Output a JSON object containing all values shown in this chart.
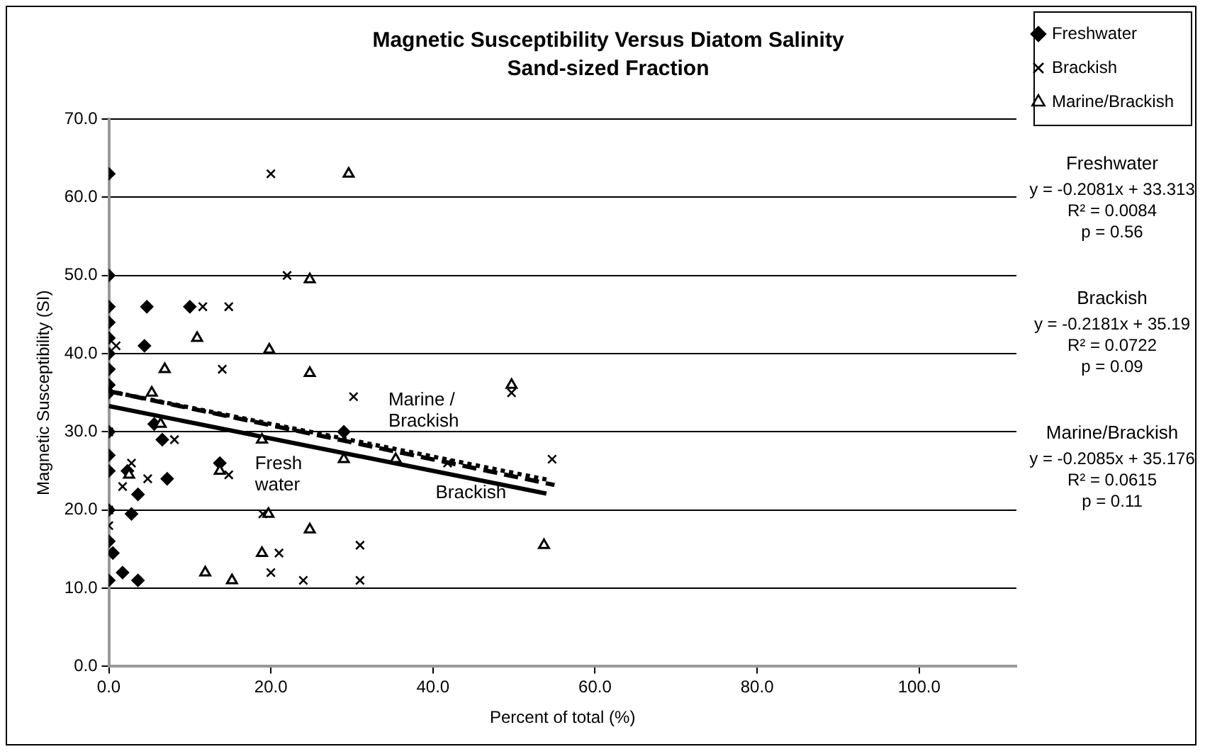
{
  "chart_data": {
    "type": "scatter",
    "title": "Magnetic Susceptibility Versus Diatom Salinity",
    "subtitle": "Sand-sized Fraction",
    "xlabel": "Percent of total (%)",
    "ylabel": "Magnetic Susceptibility (SI)",
    "xlim": [
      0,
      112
    ],
    "ylim": [
      0,
      70
    ],
    "xticks": [
      {
        "value": 0,
        "label": "0.0"
      },
      {
        "value": 20,
        "label": "20.0"
      },
      {
        "value": 40,
        "label": "40.0"
      },
      {
        "value": 60,
        "label": "60.0"
      },
      {
        "value": 80,
        "label": "80.0"
      },
      {
        "value": 100,
        "label": "100.0"
      }
    ],
    "yticks": [
      {
        "value": 0,
        "label": "0.0"
      },
      {
        "value": 10,
        "label": "10.0"
      },
      {
        "value": 20,
        "label": "20.0"
      },
      {
        "value": 30,
        "label": "30.0"
      },
      {
        "value": 40,
        "label": "40.0"
      },
      {
        "value": 50,
        "label": "50.0"
      },
      {
        "value": 60,
        "label": "60.0"
      },
      {
        "value": 70,
        "label": "70.0"
      }
    ],
    "grid": "y",
    "legend": "top right",
    "series": [
      {
        "name": "Freshwater",
        "color": "#000000",
        "marker": "diamond",
        "x": [
          0,
          0,
          0,
          0,
          0,
          0,
          0,
          0,
          0,
          4.7,
          10,
          4.4,
          5.6,
          6.6,
          7.2,
          2.8,
          0,
          0,
          0.5,
          0,
          1.7,
          3.6,
          29,
          0,
          0,
          0,
          3.6,
          2.3,
          13.7
        ],
        "values": [
          63,
          50,
          46,
          44,
          42,
          40,
          38,
          36,
          35,
          46,
          46,
          41,
          31,
          29,
          24,
          19.5,
          20,
          16,
          14.5,
          11,
          12,
          11,
          30,
          30,
          27,
          25,
          22,
          25,
          26
        ]
      },
      {
        "name": "Brackish",
        "color": "#000000",
        "marker": "cross",
        "x": [
          20,
          22,
          11.6,
          14.8,
          0.9,
          14,
          30.2,
          8.1,
          2.8,
          4.8,
          1.7,
          14.8,
          19,
          21,
          31,
          20,
          24,
          31,
          0,
          0,
          0,
          49.7,
          41.8,
          54.7
        ],
        "values": [
          63,
          50,
          46,
          46,
          41,
          38,
          34.5,
          29,
          26,
          24,
          23,
          24.5,
          19.5,
          14.5,
          15.5,
          12,
          11,
          11,
          30,
          18,
          20,
          35,
          26,
          26.5
        ]
      },
      {
        "name": "Marine/Brackish",
        "color": "#000000",
        "marker": "triangle",
        "x": [
          29.6,
          24.8,
          10.9,
          19.8,
          6.9,
          24.8,
          5.3,
          6.4,
          18.9,
          29,
          13.7,
          19.7,
          24.8,
          18.9,
          11.9,
          15.2,
          2.5,
          49.7,
          35.4,
          53.7
        ],
        "values": [
          63,
          49.5,
          42,
          40.5,
          38,
          37.5,
          35,
          31,
          29,
          26.5,
          25,
          19.5,
          17.5,
          14.5,
          12,
          11,
          24.5,
          36,
          26.5,
          15.5
        ]
      },
      {
        "type": "line",
        "color": "#000000",
        "line_style": "solid",
        "marker": "none",
        "x": [
          0,
          54
        ],
        "values": [
          33.3,
          22.1
        ]
      },
      {
        "type": "line",
        "color": "#000000",
        "line_style": "dashed",
        "marker": "none",
        "x": [
          0,
          55
        ],
        "values": [
          35.2,
          23.2
        ]
      },
      {
        "type": "line",
        "color": "#000000",
        "line_style": "dotted",
        "marker": "none",
        "x": [
          0,
          54
        ],
        "values": [
          35.2,
          23.9
        ]
      }
    ],
    "annotations": [
      "Fresh\nwater",
      "Marine /\nBrackish",
      "Brackish",
      "Freshwater\ny = -0.2081x + 33.313\nR² = 0.0084\np = 0.56",
      "Brackish\ny = -0.2181x + 35.19\nR² = 0.0722\np = 0.09",
      "Marine/Brackish\ny = -0.2085x + 35.176\nR² = 0.0615\np = 0.11"
    ]
  }
}
